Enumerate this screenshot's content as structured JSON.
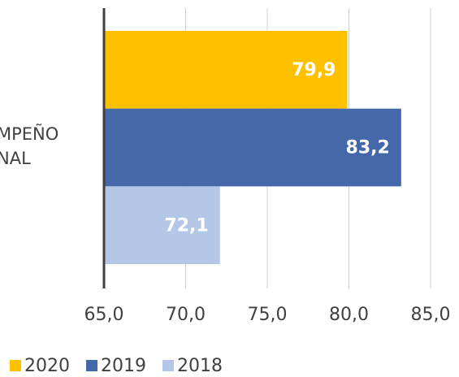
{
  "chart_data": {
    "type": "hbar",
    "categories": [
      "MPEÑO NAL"
    ],
    "series": [
      {
        "name": "2020",
        "color": "#ffc000",
        "values": [
          79.9
        ],
        "value_labels": [
          "79,9"
        ]
      },
      {
        "name": "2019",
        "color": "#4468a8",
        "values": [
          83.2
        ],
        "value_labels": [
          "83,2"
        ]
      },
      {
        "name": "2018",
        "color": "#b4c7e7",
        "values": [
          72.1
        ],
        "value_labels": [
          "72,1"
        ]
      }
    ],
    "xlim": [
      65,
      85
    ],
    "xticks": [
      {
        "value": 65,
        "label": "65,0"
      },
      {
        "value": 70,
        "label": "70,0"
      },
      {
        "value": 75,
        "label": "75,0"
      },
      {
        "value": 80,
        "label": "80,0"
      },
      {
        "value": 85,
        "label": "85,0"
      }
    ],
    "grid": true,
    "legend": "bottom"
  }
}
